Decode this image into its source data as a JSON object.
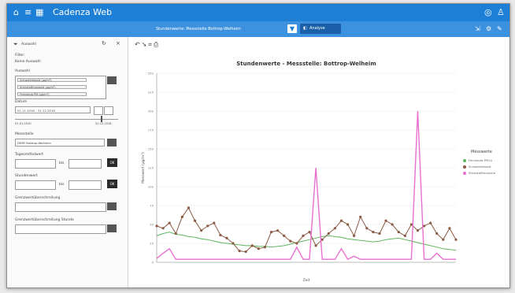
{
  "app": {
    "title": "Cadenza Web"
  },
  "toolbar": {
    "station_label": "Stundenwerte: Messstelle Bottrop-Welheim",
    "analyze_label": "Analyse"
  },
  "sidebar": {
    "filter_header": "Auswahl",
    "filter_label": "Filter:",
    "filter_value": "Keine Auswahl",
    "stoffe_label": "Auswahl",
    "stoffe": [
      "Schwefeldioxid (µg/m³)",
      "Stickstoffmonoxid (µg/m³)",
      "Feinstaub PM (µg/m³)"
    ],
    "datum_label": "Datum",
    "datum_value": "01.11.2018 – 31.12.2018",
    "range_min": "01.01.2010",
    "range_max": "31.12.2018",
    "messstelle_label": "Messstelle",
    "messstelle_value": "DEBY Bottrop-Welheim",
    "tagesmittelwert_label": "Tagesmittelwert",
    "tagesmittelwert_unit": "bis",
    "stundenwert_label": "Stundenwert",
    "stundenwert_unit": "bis",
    "ok_label": "OK",
    "grenzwert_label": "Grenzwertüberschreitung",
    "grenzwert2_label": "Grenzwertüberschreitung Stunde"
  },
  "chart_data": {
    "type": "line",
    "title": "Stundenwerte - Messstelle: Bottrop-Welheim",
    "xlabel": "Zeit",
    "ylabel": "Messwert (µg/m³)",
    "ylim": [
      0,
      250
    ],
    "legend_title": "Messwerte",
    "legend_position": "right",
    "series": [
      {
        "name": "Feinstaub PM10",
        "color": "#5fb55f",
        "values": [
          35,
          38,
          40,
          37,
          36,
          34,
          33,
          31,
          30,
          28,
          26,
          25,
          24,
          23,
          22,
          22,
          21,
          21,
          20,
          21,
          22,
          24,
          26,
          28,
          30,
          32,
          34,
          35,
          34,
          33,
          31,
          30,
          29,
          28,
          27,
          28,
          30,
          31,
          32,
          30,
          28,
          26,
          24,
          22,
          20,
          18,
          17,
          16
        ]
      },
      {
        "name": "Schwefeldioxid",
        "color": "#8a5a44",
        "values": [
          48,
          45,
          52,
          38,
          60,
          72,
          55,
          42,
          48,
          52,
          36,
          32,
          25,
          15,
          14,
          22,
          18,
          20,
          40,
          42,
          35,
          28,
          25,
          35,
          40,
          22,
          30,
          38,
          45,
          55,
          50,
          35,
          60,
          45,
          40,
          38,
          55,
          50,
          40,
          35,
          50,
          42,
          48,
          52,
          38,
          30,
          45,
          30
        ]
      },
      {
        "name": "Stickstoffmonoxid",
        "color": "#e86fcf",
        "values": [
          5,
          12,
          18,
          4,
          4,
          4,
          4,
          4,
          4,
          4,
          4,
          4,
          4,
          4,
          4,
          4,
          4,
          4,
          4,
          4,
          4,
          4,
          20,
          4,
          4,
          125,
          4,
          4,
          4,
          18,
          4,
          8,
          4,
          4,
          4,
          4,
          4,
          4,
          4,
          4,
          4,
          200,
          4,
          4,
          12,
          4,
          4,
          4
        ]
      }
    ]
  }
}
